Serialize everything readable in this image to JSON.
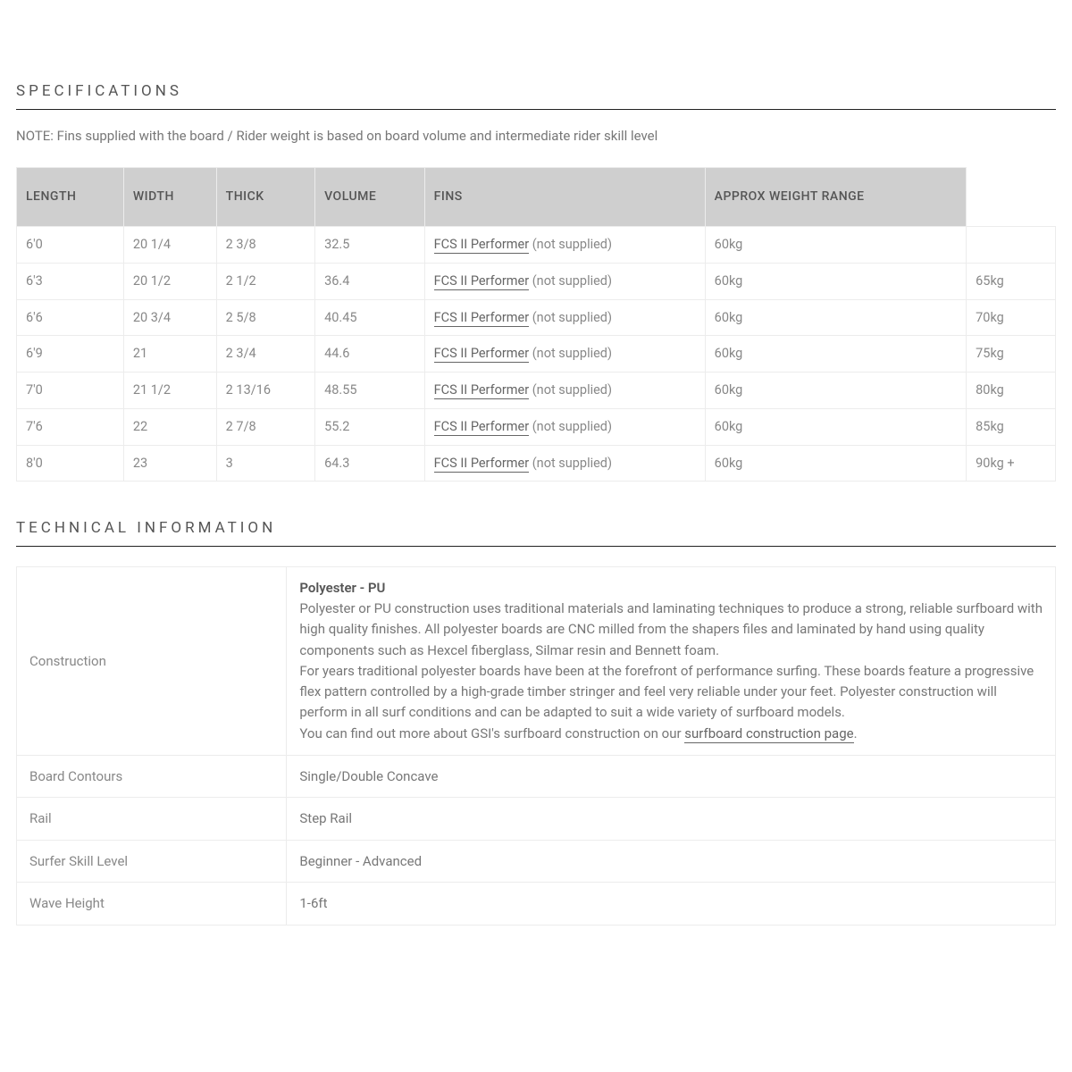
{
  "specifications": {
    "title": "SPECIFICATIONS",
    "note": "NOTE: Fins supplied with the board / Rider weight is based on board volume and intermediate rider skill level",
    "columns": [
      "LENGTH",
      "WIDTH",
      "THICK",
      "VOLUME",
      "FINS",
      "APPROX WEIGHT RANGE",
      ""
    ],
    "fins_link_text": "FCS II Performer",
    "fins_suffix": " (not supplied)",
    "rows": [
      {
        "length": "6'0",
        "width": "20 1/4",
        "thick": "2 3/8",
        "volume": "32.5",
        "weight1": "60kg",
        "weight2": ""
      },
      {
        "length": "6'3",
        "width": "20 1/2",
        "thick": "2 1/2",
        "volume": "36.4",
        "weight1": "60kg",
        "weight2": "65kg"
      },
      {
        "length": "6'6",
        "width": "20 3/4",
        "thick": "2 5/8",
        "volume": "40.45",
        "weight1": "60kg",
        "weight2": "70kg"
      },
      {
        "length": "6'9",
        "width": "21",
        "thick": "2 3/4",
        "volume": "44.6",
        "weight1": "60kg",
        "weight2": "75kg"
      },
      {
        "length": "7'0",
        "width": "21 1/2",
        "thick": "2 13/16",
        "volume": "48.55",
        "weight1": "60kg",
        "weight2": "80kg"
      },
      {
        "length": "7'6",
        "width": "22",
        "thick": "2 7/8",
        "volume": "55.2",
        "weight1": "60kg",
        "weight2": "85kg"
      },
      {
        "length": "8'0",
        "width": "23",
        "thick": "3",
        "volume": "64.3",
        "weight1": "60kg",
        "weight2": "90kg +"
      }
    ]
  },
  "technical": {
    "title": "TECHNICAL INFORMATION",
    "construction_label": "Construction",
    "construction_title": "Polyester - PU",
    "construction_p1": "Polyester or PU construction uses traditional materials and laminating techniques to produce a strong, reliable surfboard with high quality finishes. All polyester boards are CNC milled from the shapers files and laminated by hand using quality components such as Hexcel fiberglass, Silmar resin and Bennett foam.",
    "construction_p2": "For years traditional polyester boards have been at the forefront of performance surfing. These boards feature a progressive flex pattern controlled by a high-grade timber stringer and feel very reliable under your feet. Polyester construction will perform in all surf conditions and can be adapted to suit a wide variety of surfboard models.",
    "construction_p3_prefix": "You can find out more about GSI's surfboard construction on our ",
    "construction_link": "surfboard construction page",
    "construction_p3_suffix": ".",
    "rows": [
      {
        "label": "Board Contours",
        "value": "Single/Double Concave"
      },
      {
        "label": "Rail",
        "value": "Step Rail"
      },
      {
        "label": "Surfer Skill Level",
        "value": "Beginner - Advanced"
      },
      {
        "label": "Wave Height",
        "value": "1-6ft"
      }
    ]
  },
  "colors": {
    "header_bg": "#cfcfcf",
    "border": "#ececec",
    "text_muted": "#888",
    "text": "#666"
  }
}
